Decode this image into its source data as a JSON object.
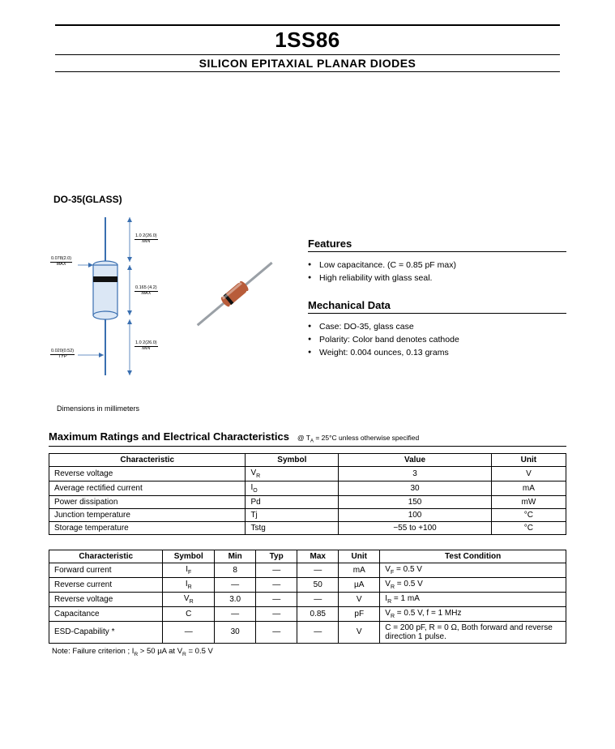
{
  "header": {
    "part_number": "1SS86",
    "subtitle": "SILICON EPITAXIAL PLANAR DIODES"
  },
  "package": {
    "label": "DO-35(GLASS)",
    "dimensions_note": "Dimensions in millimeters",
    "dims": {
      "lead_len": {
        "val": "1.0 2(26.0)",
        "note": "MIN"
      },
      "body_dia": {
        "val": "0.078(2.0)",
        "note": "MAX"
      },
      "body_len": {
        "val": "0.165 (4.2)",
        "note": "MAX"
      },
      "lead_dia": {
        "val": "0.020(0.52)",
        "note": "TYP"
      }
    }
  },
  "features": {
    "heading": "Features",
    "items": [
      "Low capacitance. (C = 0.85 pF max)",
      "High reliability with glass seal."
    ]
  },
  "mechanical": {
    "heading": "Mechanical Data",
    "items": [
      "Case:  DO-35, glass case",
      "Polarity: Color band denotes cathode",
      "Weight: 0.004 ounces, 0.13 grams"
    ]
  },
  "ratings": {
    "heading": "Maximum Ratings and Electrical Characteristics",
    "condition": "@ T<sub>A</sub> = 25°C unless otherwise specified",
    "table1": {
      "columns": [
        "Characteristic",
        "Symbol",
        "Value",
        "Unit"
      ],
      "rows": [
        [
          "Reverse voltage",
          "V<sub>R</sub>",
          "3",
          "V"
        ],
        [
          "Average rectified current",
          "I<sub>O</sub>",
          "30",
          "mA"
        ],
        [
          "Power dissipation",
          "Pd",
          "150",
          "mW"
        ],
        [
          "Junction temperature",
          "Tj",
          "100",
          "°C"
        ],
        [
          "Storage temperature",
          "Tstg",
          "−55 to +100",
          "°C"
        ]
      ]
    },
    "table2": {
      "columns": [
        "Characteristic",
        "Symbol",
        "Min",
        "Typ",
        "Max",
        "Unit",
        "Test Condition"
      ],
      "rows": [
        [
          "Forward current",
          "I<sub>F</sub>",
          "8",
          "—",
          "—",
          "mA",
          "V<sub>F</sub> = 0.5 V"
        ],
        [
          "Reverse current",
          "I<sub>R</sub>",
          "—",
          "—",
          "50",
          "µA",
          "V<sub>R</sub> = 0.5 V"
        ],
        [
          "Reverse voltage",
          "V<sub>R</sub>",
          "3.0",
          "—",
          "—",
          "V",
          "I<sub>R</sub> = 1 mA"
        ],
        [
          "Capacitance",
          "C",
          "—",
          "—",
          "0.85",
          "pF",
          "V<sub>R</sub> = 0.5 V, f = 1 MHz"
        ],
        [
          "ESD-Capability *",
          "—",
          "30",
          "—",
          "—",
          "V",
          "C = 200 pF, R = 0 Ω, Both forward and reverse direction 1 pulse."
        ]
      ]
    },
    "note": "Note:   Failure criterion ; I<sub>R</sub> > 50 µA at V<sub>R</sub> = 0.5 V"
  },
  "colors": {
    "diode_body": "#b85c3a",
    "diode_band": "#111111",
    "lead": "#9aa0a6",
    "drawing_stroke": "#3a6fb0",
    "drawing_fill": "#dbe7f5"
  }
}
